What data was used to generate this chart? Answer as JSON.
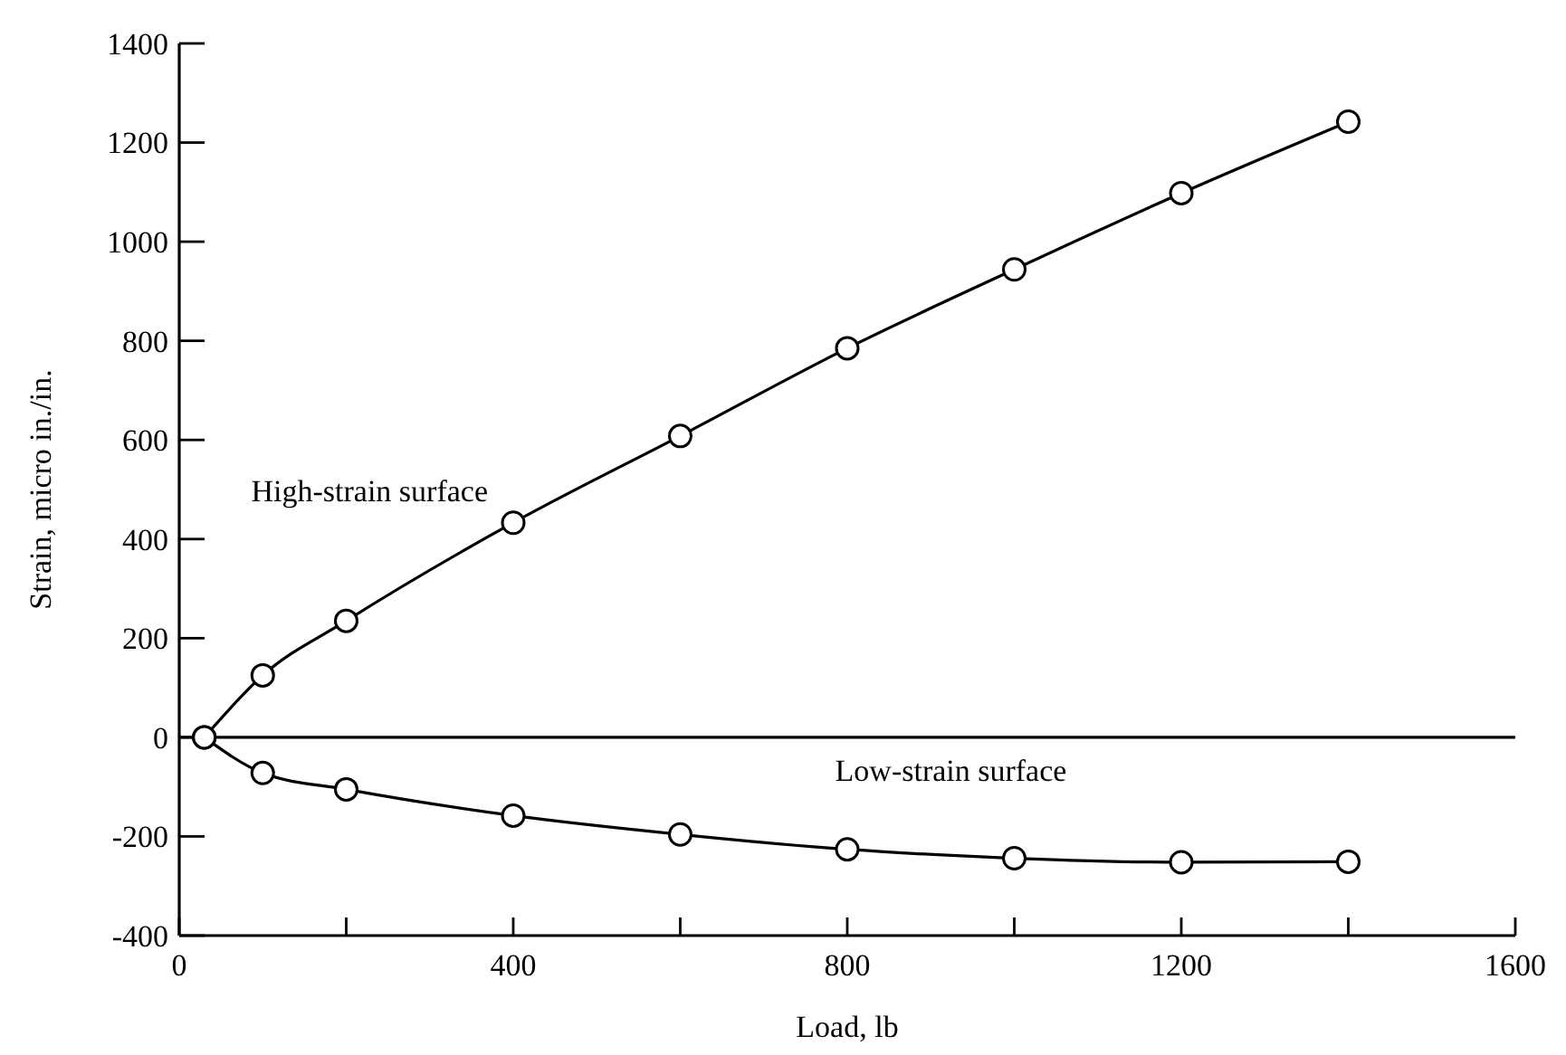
{
  "chart_data": {
    "type": "line",
    "xlabel": "Load, lb",
    "ylabel": "Strain, micro in./in.",
    "x": [
      30,
      100,
      200,
      400,
      600,
      800,
      1000,
      1200,
      1400
    ],
    "series": [
      {
        "name": "High-strain surface",
        "color": "#000000",
        "values": [
          0,
          125,
          235,
          433,
          608,
          785,
          944,
          1098,
          1242
        ]
      },
      {
        "name": "Low-strain surface",
        "color": "#000000",
        "values": [
          0,
          -72,
          -105,
          -158,
          -196,
          -226,
          -244,
          -252,
          -251
        ]
      }
    ],
    "xlim": [
      0,
      1600
    ],
    "xticks": [
      0,
      {
        "value": 200,
        "label": null
      },
      400,
      {
        "value": 600,
        "label": null
      },
      800,
      {
        "value": 1000,
        "label": null
      },
      1200,
      {
        "value": 1400,
        "label": null
      },
      1600
    ],
    "ylim": [
      -400,
      1400
    ],
    "yticks": [
      -400,
      -200,
      0,
      200,
      400,
      600,
      800,
      1000,
      1200,
      1400
    ],
    "ref_lines": [
      {
        "axis": "y",
        "value": 0,
        "color": "#000000"
      }
    ],
    "marker": "circle",
    "line_style": "solid",
    "grid": false
  }
}
